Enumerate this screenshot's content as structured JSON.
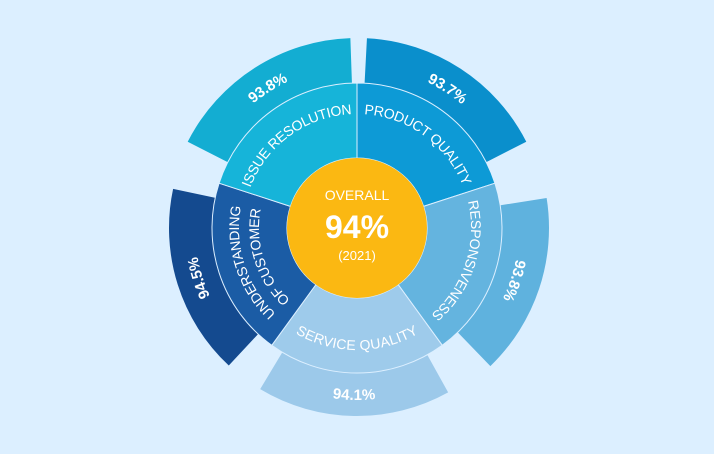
{
  "center": {
    "title": "OVERALL",
    "value": "94%",
    "year": "(2021)"
  },
  "segments": [
    {
      "label_lines": [
        "PRODUCT QUALITY"
      ],
      "value_label": "93.7%"
    },
    {
      "label_lines": [
        "RESPONSIVENESS"
      ],
      "value_label": "93.8%"
    },
    {
      "label_lines": [
        "SERVICE QUALITY"
      ],
      "value_label": "94.1%"
    },
    {
      "label_lines": [
        "UNDERSTANDING",
        "OF CUSTOMER"
      ],
      "value_label": "94.5%"
    },
    {
      "label_lines": [
        "ISSUE RESOLUTION"
      ],
      "value_label": "93.8%"
    }
  ]
}
